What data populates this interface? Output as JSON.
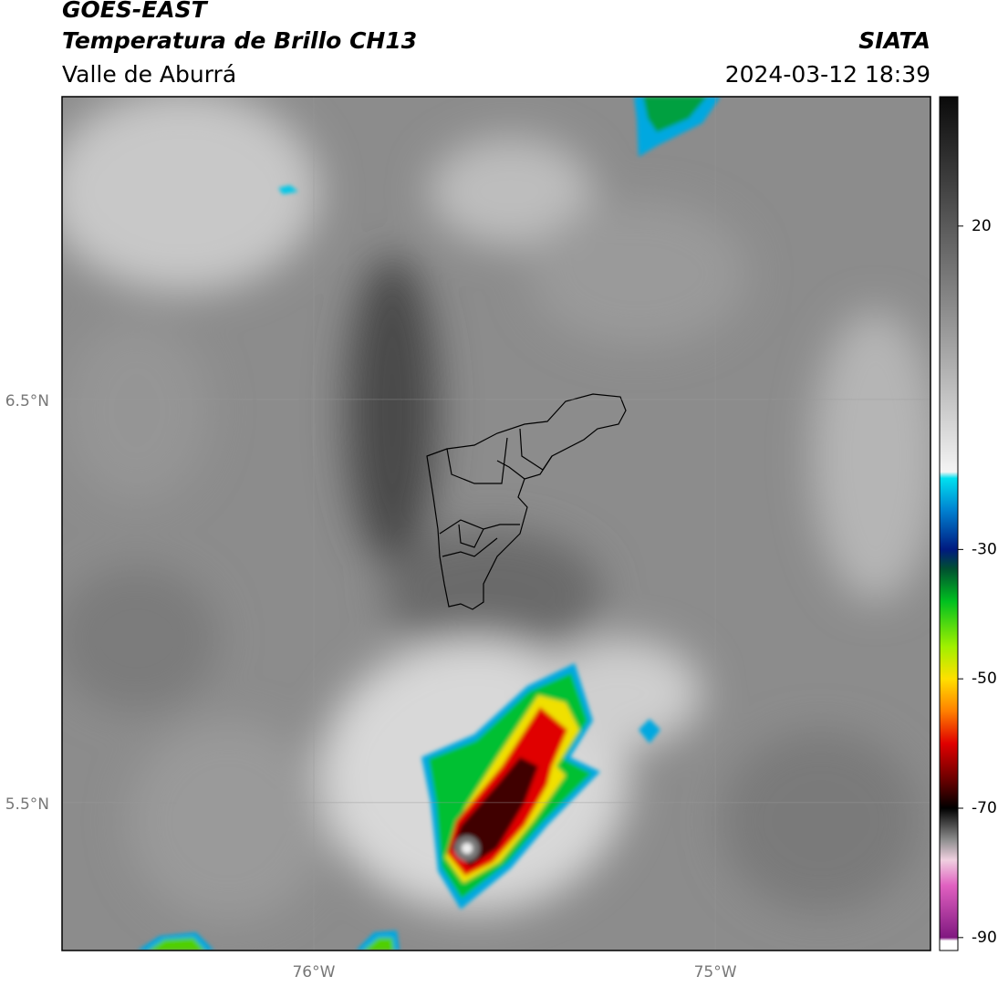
{
  "header": {
    "title": "GOES-EAST",
    "subtitle": "Temperatura de Brillo CH13",
    "region": "Valle de Aburrá",
    "source": "SIATA",
    "datetime": "2024-03-12 18:39"
  },
  "map": {
    "latlim": [
      5.133,
      7.251
    ],
    "lonlim": [
      -76.627,
      -74.464
    ],
    "latticks": [
      {
        "value": 6.5,
        "label": "6.5°N"
      },
      {
        "value": 5.5,
        "label": "5.5°N"
      }
    ],
    "lonticks": [
      {
        "value": -76,
        "label": "76°W"
      },
      {
        "value": -75,
        "label": "75°W"
      }
    ],
    "grid": true
  },
  "colorbar": {
    "lim": [
      -92,
      40
    ],
    "ticks": [
      20,
      -30,
      -50,
      -70,
      -90
    ],
    "colormap": [
      {
        "value": 40,
        "color": "#0a0a0a"
      },
      {
        "value": 20,
        "color": "#5a5a5a"
      },
      {
        "value": 0,
        "color": "#a8a8a8"
      },
      {
        "value": -18,
        "color": "#f4f4f4"
      },
      {
        "value": -19,
        "color": "#00e0f0"
      },
      {
        "value": -24,
        "color": "#0080d0"
      },
      {
        "value": -30,
        "color": "#001a80"
      },
      {
        "value": -33,
        "color": "#005030"
      },
      {
        "value": -38,
        "color": "#00c020"
      },
      {
        "value": -45,
        "color": "#a0f000"
      },
      {
        "value": -50,
        "color": "#ffe000"
      },
      {
        "value": -55,
        "color": "#ff8000"
      },
      {
        "value": -60,
        "color": "#e00000"
      },
      {
        "value": -66,
        "color": "#600000"
      },
      {
        "value": -70,
        "color": "#000000"
      },
      {
        "value": -75,
        "color": "#909090"
      },
      {
        "value": -78,
        "color": "#f0d0e0"
      },
      {
        "value": -82,
        "color": "#e060c0"
      },
      {
        "value": -90,
        "color": "#801880"
      },
      {
        "value": -90.5,
        "color": "#ffffff"
      },
      {
        "value": -92,
        "color": "#ffffff"
      }
    ]
  }
}
